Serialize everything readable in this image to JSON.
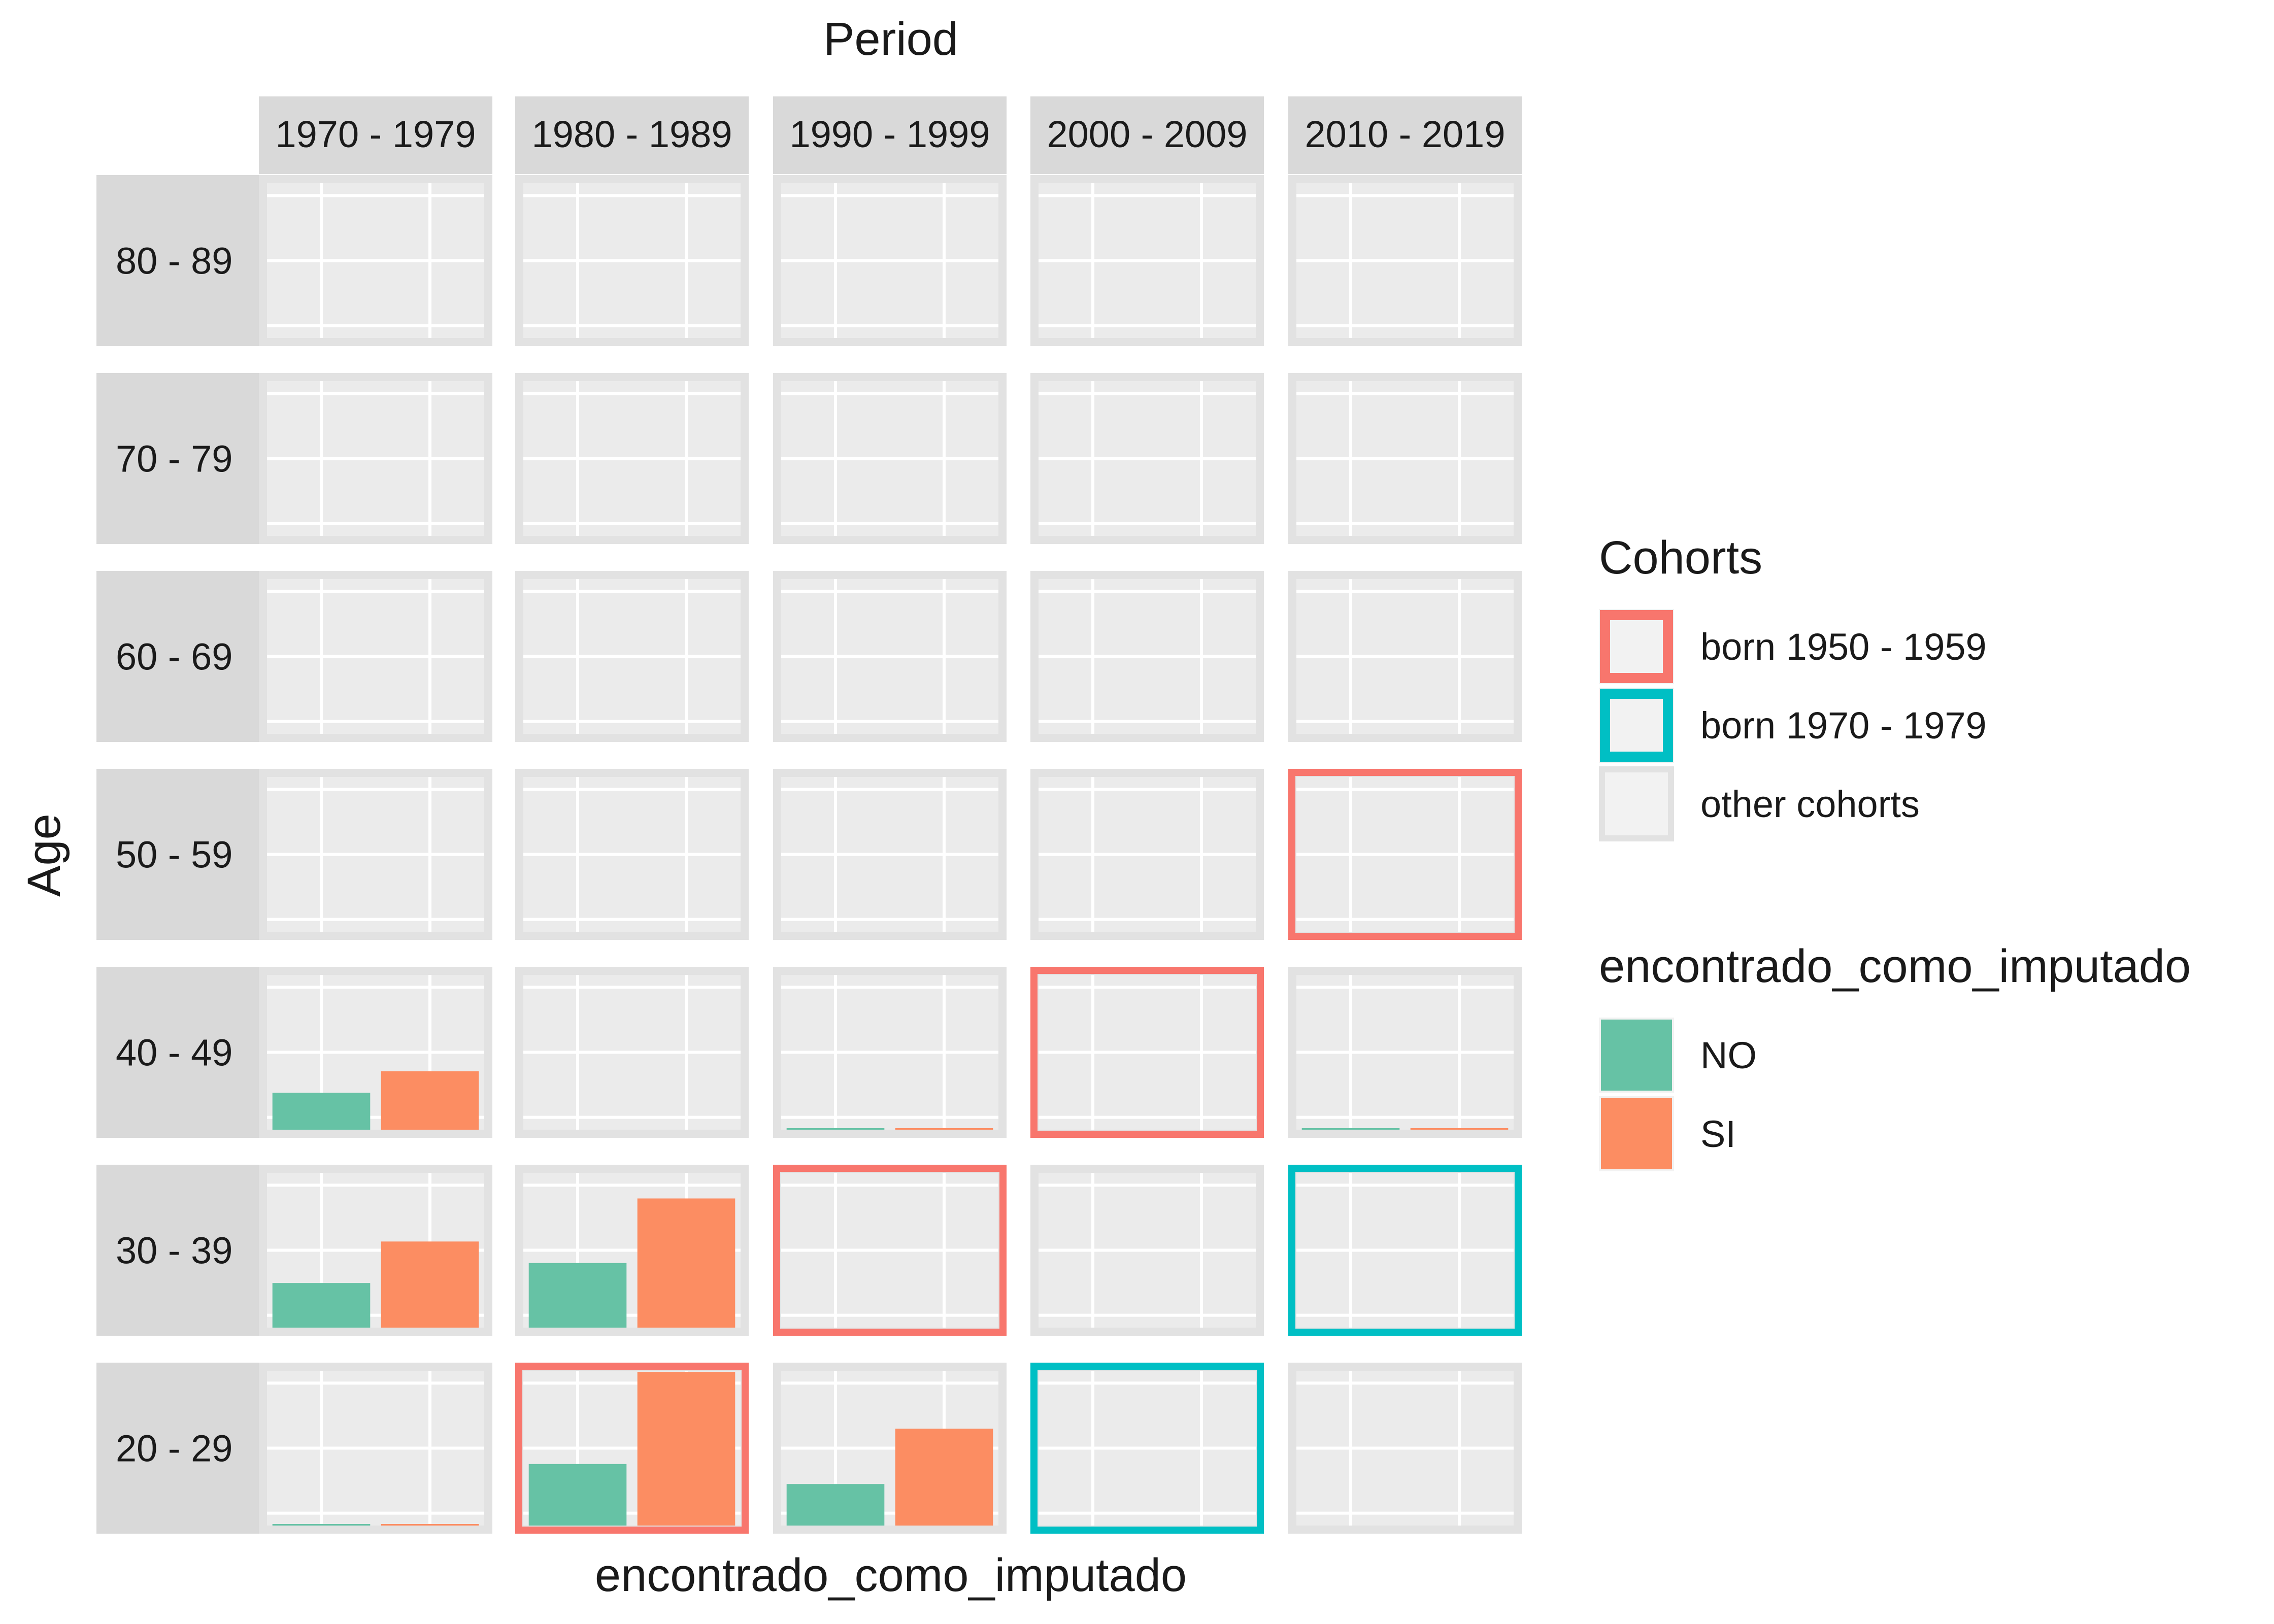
{
  "chart_data": {
    "type": "bar",
    "title": "",
    "facet_col_title": "Period",
    "facet_row_title": "Age",
    "xlabel": "encontrado_como_imputado",
    "ylabel": "",
    "periods": [
      "1970 - 1979",
      "1980 - 1989",
      "1990 - 1999",
      "2000 - 2009",
      "2010 - 2019"
    ],
    "ages": [
      "80 - 89",
      "70 - 79",
      "60 - 69",
      "50 - 59",
      "40 - 49",
      "30 - 39",
      "20 - 29"
    ],
    "categories": [
      "NO",
      "SI"
    ],
    "ylim": [
      0,
      1
    ],
    "grid": true,
    "cells": [
      {
        "age": "40 - 49",
        "period": "1970 - 1979",
        "values": [
          0.24,
          0.38
        ]
      },
      {
        "age": "40 - 49",
        "period": "1990 - 1999",
        "values": [
          0.005,
          0.005
        ]
      },
      {
        "age": "40 - 49",
        "period": "2010 - 2019",
        "values": [
          0,
          0.005
        ]
      },
      {
        "age": "30 - 39",
        "period": "1970 - 1979",
        "values": [
          0.29,
          0.56
        ]
      },
      {
        "age": "30 - 39",
        "period": "1980 - 1989",
        "values": [
          0.42,
          0.84
        ]
      },
      {
        "age": "20 - 29",
        "period": "1970 - 1979",
        "values": [
          0.005,
          0.005
        ]
      },
      {
        "age": "20 - 29",
        "period": "1980 - 1989",
        "values": [
          0.4,
          1.0
        ]
      },
      {
        "age": "20 - 29",
        "period": "1990 - 1999",
        "values": [
          0.27,
          0.63
        ]
      }
    ],
    "highlights": [
      {
        "cohort": "born 1950 - 1959",
        "cells": [
          [
            "50 - 59",
            "2010 - 2019"
          ],
          [
            "40 - 49",
            "2000 - 2009"
          ],
          [
            "30 - 39",
            "1990 - 1999"
          ],
          [
            "20 - 29",
            "1980 - 1989"
          ]
        ]
      },
      {
        "cohort": "born 1970 - 1979",
        "cells": [
          [
            "30 - 39",
            "2010 - 2019"
          ],
          [
            "20 - 29",
            "2000 - 2009"
          ]
        ]
      }
    ],
    "legends": [
      {
        "title": "Cohorts",
        "kind": "outline",
        "placement": "right",
        "items": [
          {
            "label": "born 1950 - 1959",
            "color": "#F8766D"
          },
          {
            "label": "born 1970 - 1979",
            "color": "#00BFC4"
          },
          {
            "label": "other cohorts",
            "color": ""
          }
        ]
      },
      {
        "title": "encontrado_como_imputado",
        "kind": "fill",
        "placement": "right",
        "items": [
          {
            "label": "NO",
            "color": "#66C2A5"
          },
          {
            "label": "SI",
            "color": "#FC8D62"
          }
        ]
      }
    ]
  },
  "colors": {
    "panel_bg": "#EBEBEB",
    "strip_bg": "#D9D9D9",
    "gridline": "#FFFFFF",
    "cell_border": "#E2E2E2",
    "legend_key_bg": "#F2F2F2"
  }
}
